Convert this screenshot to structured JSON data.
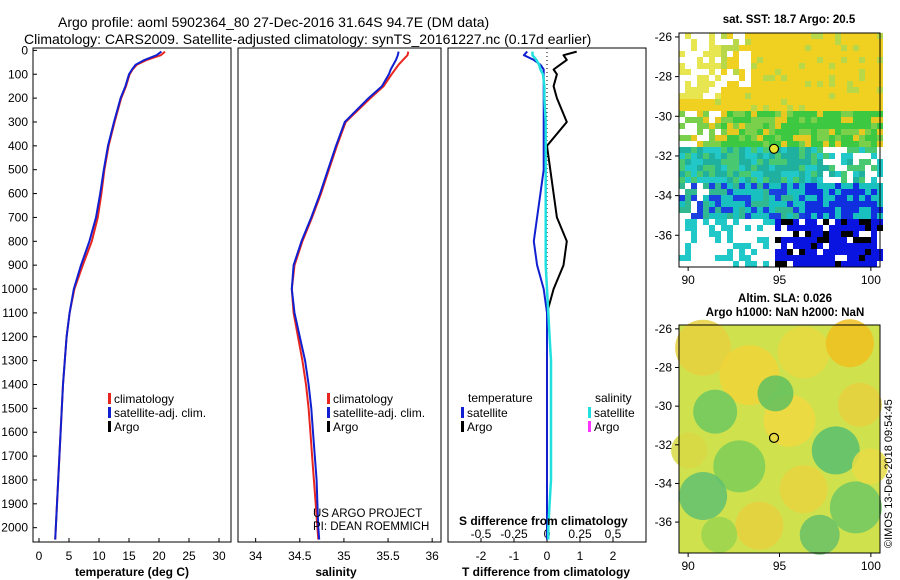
{
  "titles": {
    "line1": "Argo profile: aoml 5902364_80 27-Dec-2016 31.64S 94.7E (DM data)",
    "line2": "Climatology: CARS2009. Satellite-adjusted climatology: synTS_20161227.nc (0.17d earlier)"
  },
  "colors": {
    "climatology": "#e8261f",
    "satellite": "#1020d0",
    "argo": "#000000",
    "sal_satellite": "#22e0e0",
    "sal_argo": "#ff33ff"
  },
  "chart_data": [
    {
      "id": "temperature",
      "type": "line",
      "xlabel": "temperature (deg C)",
      "ylabel": "depth",
      "xlim": [
        -1,
        32
      ],
      "ylim": [
        2060,
        -10
      ],
      "xticks": [
        0,
        5,
        10,
        15,
        20,
        25,
        30
      ],
      "yticks": [
        0,
        100,
        200,
        300,
        400,
        500,
        600,
        700,
        800,
        900,
        1000,
        1100,
        1200,
        1300,
        1400,
        1500,
        1600,
        1700,
        1800,
        1900,
        2000
      ],
      "depth": [
        5,
        20,
        40,
        60,
        80,
        100,
        150,
        200,
        300,
        400,
        500,
        600,
        700,
        800,
        900,
        1000,
        1100,
        1200,
        1300,
        1400,
        1500,
        1600,
        1700,
        1800,
        1900,
        2000,
        2050
      ],
      "series": [
        {
          "name": "climatology",
          "values": [
            21.0,
            20.3,
            18.0,
            16.3,
            15.6,
            15.1,
            14.5,
            13.7,
            12.6,
            11.6,
            10.9,
            10.4,
            9.8,
            8.8,
            7.3,
            5.9,
            5.1,
            4.6,
            4.3,
            4.0,
            3.8,
            3.6,
            3.4,
            3.2,
            3.0,
            2.8,
            2.7
          ]
        },
        {
          "name": "satellite-adj. clim.",
          "values": [
            20.4,
            19.6,
            17.6,
            16.1,
            15.5,
            15.0,
            14.4,
            13.6,
            12.5,
            11.5,
            10.8,
            10.2,
            9.5,
            8.4,
            7.0,
            5.8,
            5.1,
            4.6,
            4.3,
            4.0,
            3.8,
            3.6,
            3.4,
            3.2,
            3.0,
            2.8,
            2.7
          ]
        },
        {
          "name": "Argo",
          "values": [
            null,
            null,
            null,
            null,
            null,
            null,
            null,
            null,
            null,
            null,
            null,
            null,
            null,
            null,
            null,
            null,
            null,
            null,
            null,
            null,
            null,
            null,
            null,
            null,
            null,
            null,
            null
          ]
        }
      ],
      "legend": [
        "climatology",
        "satellite-adj. clim.",
        "Argo"
      ],
      "legend_position": "lower-right"
    },
    {
      "id": "salinity",
      "type": "line",
      "xlabel": "salinity",
      "ylabel": "depth",
      "xlim": [
        33.8,
        36.1
      ],
      "ylim": [
        2060,
        -10
      ],
      "xticks": [
        34,
        34.5,
        35,
        35.5,
        36
      ],
      "xtick_labels": [
        "34",
        "34.5",
        "35",
        "35.5",
        "36"
      ],
      "depth": [
        5,
        20,
        40,
        60,
        80,
        100,
        150,
        200,
        300,
        400,
        500,
        600,
        700,
        800,
        900,
        1000,
        1100,
        1200,
        1300,
        1400,
        1500,
        1600,
        1700,
        1800,
        1900,
        2000,
        2050
      ],
      "series": [
        {
          "name": "climatology",
          "values": [
            35.73,
            35.72,
            35.67,
            35.62,
            35.58,
            35.54,
            35.45,
            35.3,
            35.02,
            34.92,
            34.83,
            34.74,
            34.64,
            34.53,
            34.44,
            34.41,
            34.43,
            34.48,
            34.53,
            34.57,
            34.6,
            34.62,
            34.64,
            34.66,
            34.68,
            34.7,
            34.71
          ]
        },
        {
          "name": "satellite-adj. clim.",
          "values": [
            35.62,
            35.61,
            35.59,
            35.56,
            35.53,
            35.51,
            35.43,
            35.28,
            35.01,
            34.91,
            34.82,
            34.73,
            34.63,
            34.52,
            34.43,
            34.41,
            34.44,
            34.5,
            34.56,
            34.6,
            34.63,
            34.65,
            34.67,
            34.69,
            34.7,
            34.71,
            34.72
          ]
        },
        {
          "name": "Argo",
          "values": [
            null,
            null,
            null,
            null,
            null,
            null,
            null,
            null,
            null,
            null,
            null,
            null,
            null,
            null,
            null,
            null,
            null,
            null,
            null,
            null,
            null,
            null,
            null,
            null,
            null,
            null,
            null
          ]
        }
      ],
      "legend": [
        "climatology",
        "satellite-adj. clim.",
        "Argo"
      ],
      "legend_position": "lower-right",
      "credits": [
        "US ARGO PROJECT",
        "PI: DEAN ROEMMICH"
      ]
    },
    {
      "id": "difference",
      "type": "line",
      "xlabel": "T difference from climatology",
      "xlabel_top": "S difference from climatology",
      "ylabel": "depth",
      "xlim": [
        -3,
        3
      ],
      "ylim": [
        2060,
        -10
      ],
      "xticks": [
        -2,
        -1,
        0,
        1,
        2
      ],
      "xtick_labels": [
        "-2",
        "-1",
        "0",
        "1",
        "2"
      ],
      "sticks": [
        -2,
        -1,
        0,
        1,
        2
      ],
      "stick_labels": [
        "-0.5",
        "-0.25",
        "0",
        "0.25",
        "0.5"
      ],
      "depth": [
        5,
        20,
        40,
        60,
        80,
        100,
        150,
        200,
        300,
        400,
        500,
        600,
        700,
        800,
        900,
        1000,
        1100,
        1200,
        1300,
        1400,
        1500,
        1600,
        1700,
        1800,
        1900,
        2000,
        2050
      ],
      "temp_diffs": {
        "satellite": [
          -0.6,
          -0.7,
          -0.4,
          -0.2,
          -0.1,
          -0.1,
          -0.1,
          -0.1,
          -0.1,
          -0.1,
          -0.1,
          -0.2,
          -0.3,
          -0.4,
          -0.3,
          -0.1,
          0,
          0,
          0,
          0,
          0,
          0,
          0,
          0,
          0,
          0,
          0
        ],
        "argo": [
          0.9,
          0.5,
          0.6,
          0.4,
          0.2,
          0.3,
          0.2,
          0.3,
          0.6,
          0.0,
          0.1,
          0.2,
          0.3,
          0.6,
          0.5,
          0.2,
          0.0,
          null,
          null,
          null,
          null,
          null,
          null,
          null,
          null,
          null,
          null
        ]
      },
      "sal_diffs": {
        "satellite": [
          -0.11,
          -0.11,
          -0.08,
          -0.06,
          -0.05,
          -0.03,
          -0.02,
          -0.02,
          -0.01,
          -0.01,
          -0.01,
          -0.01,
          -0.01,
          -0.01,
          -0.01,
          0,
          0.01,
          0.02,
          0.03,
          0.03,
          0.03,
          0.03,
          0.03,
          0.03,
          0.02,
          0.01,
          0.01
        ],
        "argo": []
      },
      "legend_temperature": {
        "heading": "temperature",
        "items": [
          "satellite",
          "Argo"
        ]
      },
      "legend_salinity": {
        "heading": "salinity",
        "items": [
          "satellite",
          "Argo"
        ]
      }
    }
  ],
  "sst_map": {
    "title": "sat. SST: 18.7 Argo: 20.5",
    "lon_ticks": [
      90,
      95,
      100
    ],
    "lat_ticks": [
      -26,
      -28,
      -30,
      -32,
      -34,
      -36
    ],
    "lon_range": [
      89.5,
      100.5
    ],
    "lat_range": [
      -37.6,
      -25.8
    ],
    "profile": {
      "lon": 94.7,
      "lat": -31.64
    }
  },
  "sla_map": {
    "title_line1": "Altim. SLA: 0.026",
    "title_line2": "Argo h1000: NaN h2000: NaN",
    "lon_ticks": [
      90,
      95,
      100
    ],
    "lat_ticks": [
      -26,
      -28,
      -30,
      -32,
      -34,
      -36
    ],
    "lon_range": [
      89.5,
      100.5
    ],
    "lat_range": [
      -37.6,
      -25.8
    ],
    "profile": {
      "lon": 94.7,
      "lat": -31.64
    }
  },
  "footer": {
    "credit": "©IMOS 13-Dec-2018 09:54:45"
  }
}
